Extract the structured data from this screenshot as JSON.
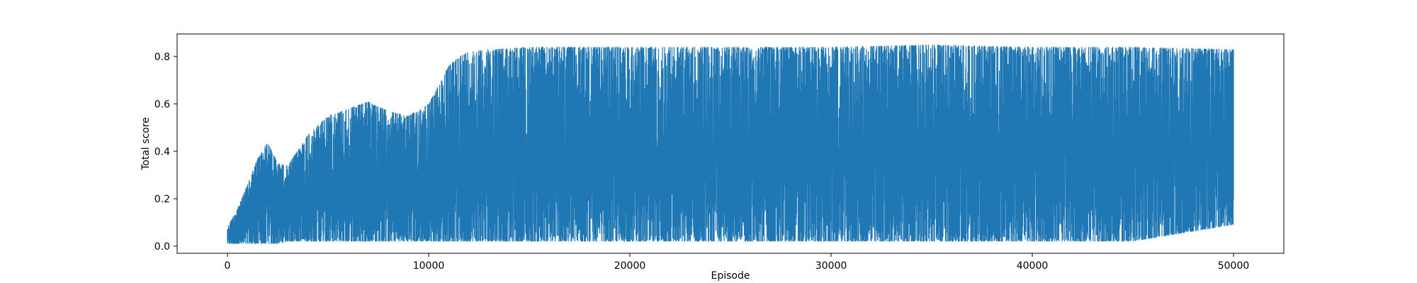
{
  "chart_data": {
    "type": "line",
    "title": "",
    "xlabel": "Episode",
    "ylabel": "Total score",
    "xlim": [
      -2500,
      52500
    ],
    "ylim": [
      -0.03,
      0.895
    ],
    "xticks": [
      0,
      10000,
      20000,
      30000,
      40000,
      50000
    ],
    "yticks": [
      0.0,
      0.2,
      0.4,
      0.6,
      0.8
    ],
    "xtick_labels": [
      "0",
      "10000",
      "20000",
      "30000",
      "40000",
      "50000"
    ],
    "ytick_labels": [
      "0.0",
      "0.2",
      "0.4",
      "0.6",
      "0.8"
    ],
    "grid": false,
    "legend": "none",
    "series": [
      {
        "name": "Total score",
        "color": "#1f77b4",
        "envelope_x": [
          0,
          500,
          1000,
          1500,
          2000,
          2500,
          3000,
          4000,
          5000,
          6000,
          7000,
          8000,
          9000,
          10000,
          10500,
          11000,
          11500,
          12000,
          13000,
          15000,
          20000,
          25000,
          30000,
          35000,
          40000,
          45000,
          50000
        ],
        "envelope_max": [
          0.08,
          0.16,
          0.26,
          0.37,
          0.44,
          0.35,
          0.34,
          0.47,
          0.55,
          0.58,
          0.61,
          0.57,
          0.55,
          0.6,
          0.68,
          0.76,
          0.8,
          0.82,
          0.83,
          0.84,
          0.84,
          0.84,
          0.84,
          0.85,
          0.84,
          0.84,
          0.83
        ],
        "envelope_min": [
          0.01,
          0.01,
          0.01,
          0.01,
          0.01,
          0.01,
          0.02,
          0.02,
          0.02,
          0.02,
          0.02,
          0.02,
          0.02,
          0.02,
          0.02,
          0.02,
          0.02,
          0.02,
          0.02,
          0.02,
          0.02,
          0.02,
          0.02,
          0.02,
          0.02,
          0.02,
          0.09
        ]
      }
    ]
  }
}
